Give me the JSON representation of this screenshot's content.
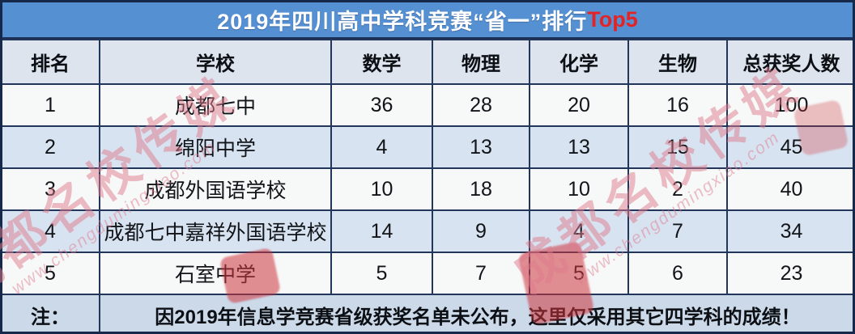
{
  "banner": {
    "title": "2019年四川高中学科竞赛“省一”排行",
    "highlight": "Top5"
  },
  "table": {
    "headers": [
      "排名",
      "学校",
      "数学",
      "物理",
      "化学",
      "生物",
      "总获奖人数"
    ],
    "rows": [
      [
        "1",
        "成都七中",
        "36",
        "28",
        "20",
        "16",
        "100"
      ],
      [
        "2",
        "绵阳中学",
        "4",
        "13",
        "13",
        "15",
        "45"
      ],
      [
        "3",
        "成都外国语学校",
        "10",
        "18",
        "10",
        "2",
        "40"
      ],
      [
        "4",
        "成都七中嘉祥外国语学校",
        "14",
        "9",
        "4",
        "7",
        "34"
      ],
      [
        "5",
        "石室中学",
        "5",
        "7",
        "5",
        "6",
        "23"
      ]
    ]
  },
  "note": {
    "label": "注：",
    "text": "因2019年信息学竞赛省级获奖名单未公布，这里仅采用其它四学科的成绩！"
  },
  "watermark": {
    "text": "成都名校传媒",
    "url": "www.chengdumingxiao.com"
  },
  "colors": {
    "banner_bg": "#5590d2",
    "top5_red": "#e32427",
    "header_bg": "#dde4ee",
    "row_light": "#f7f8f8",
    "row_alt": "#d8e3f1",
    "note_bg": "#ccd9e9",
    "border": "#22365c",
    "watermark_pink": "#de7a8c",
    "seal_red": "#cd343c"
  }
}
